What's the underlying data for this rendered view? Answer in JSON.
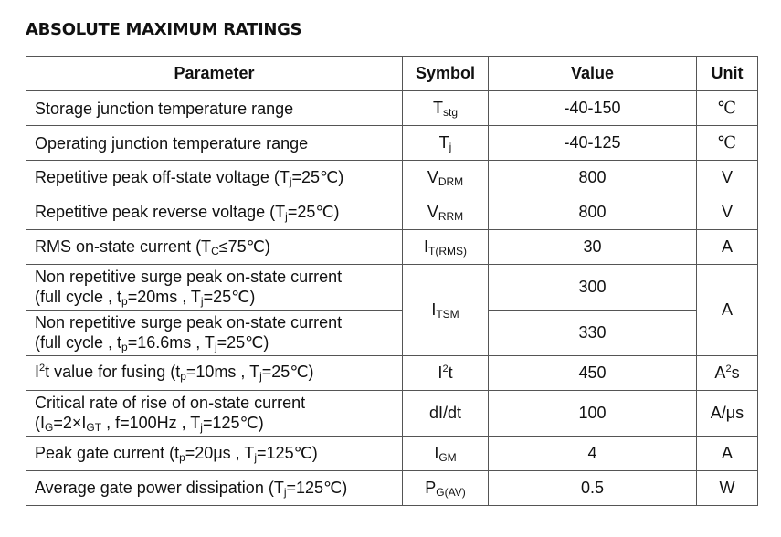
{
  "title": "ABSOLUTE MAXIMUM RATINGS",
  "headers": [
    "Parameter",
    "Symbol",
    "Value",
    "Unit"
  ],
  "rows": {
    "r0": {
      "param": "Storage junction temperature range",
      "sym_main": "T",
      "sym_sub": "stg",
      "value": "-40-150",
      "unit": "℃"
    },
    "r1": {
      "param": "Operating junction temperature range",
      "sym_main": "T",
      "sym_sub": "j",
      "value": "-40-125",
      "unit": "℃"
    },
    "r2": {
      "param_a": "Repetitive peak off-state voltage (T",
      "param_sub": "j",
      "param_b": "=25℃)",
      "sym_main": "V",
      "sym_sub": "DRM",
      "value": "800",
      "unit": "V"
    },
    "r3": {
      "param_a": "Repetitive peak reverse voltage (T",
      "param_sub": "j",
      "param_b": "=25℃)",
      "sym_main": "V",
      "sym_sub": "RRM",
      "value": "800",
      "unit": "V"
    },
    "r4": {
      "param_a": "RMS on-state current (T",
      "param_sub": "C",
      "param_b": "≤75℃)",
      "sym_main": "I",
      "sym_sub": "T(RMS)",
      "value": "30",
      "unit": "A"
    },
    "r5": {
      "line1": "Non repetitive surge peak on-state current",
      "l2a": "(full cycle , t",
      "l2sub1": "p",
      "l2b": "=20ms , T",
      "l2sub2": "j",
      "l2c": "=25℃)",
      "sym_main": "I",
      "sym_sub": "TSM",
      "value": "300",
      "unit": "A"
    },
    "r6": {
      "line1": "Non repetitive surge peak on-state current",
      "l2a": "(full cycle , t",
      "l2sub1": "p",
      "l2b": "=16.6ms , T",
      "l2sub2": "j",
      "l2c": "=25℃)",
      "value": "330"
    },
    "r7": {
      "pa": "I",
      "psup": "2",
      "pb": "t value for fusing (t",
      "psub1": "p",
      "pc": "=10ms , T",
      "psub2": "j",
      "pd": "=25℃)",
      "sym_main": "I",
      "sym_sup": "2",
      "sym_tail": "t",
      "value": "450",
      "unit_main": "A",
      "unit_sup": "2",
      "unit_tail": "s"
    },
    "r8": {
      "line1": "Critical rate of rise of on-state current",
      "l2a": "(I",
      "l2sub1": "G",
      "l2b": "=2×I",
      "l2sub2": "GT",
      "l2c": " , f=100Hz , T",
      "l2sub3": "j",
      "l2d": "=125℃)",
      "sym": "dI/dt",
      "value": "100",
      "unit": "A/μs"
    },
    "r9": {
      "pa": "Peak gate current (t",
      "psub1": "p",
      "pb": "=20μs , T",
      "psub2": "j",
      "pc": "=125℃)",
      "sym_main": "I",
      "sym_sub": "GM",
      "value": "4",
      "unit": "A"
    },
    "r10": {
      "pa": "Average gate power dissipation (T",
      "psub1": "j",
      "pb": "=125℃)",
      "sym_main": "P",
      "sym_sub": "G(AV)",
      "value": "0.5",
      "unit": "W"
    }
  }
}
